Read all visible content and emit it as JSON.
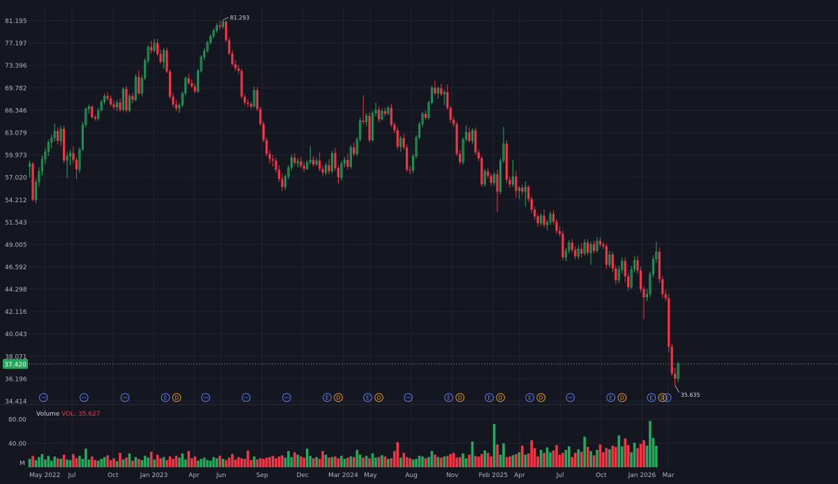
{
  "theme": {
    "background": "#141720",
    "grid": "#222632",
    "axis_text": "#b2b5be",
    "up": "#22ab5c",
    "down": "#f23645",
    "last_price_bg": "#22ab5c",
    "event_e": "#5b7cfa",
    "event_d": "#e89a12"
  },
  "price_axis": {
    "ticks": [
      "81.195",
      "77.197",
      "73.396",
      "69.782",
      "66.346",
      "63.079",
      "59.973",
      "57.020",
      "54.212",
      "51.543",
      "49.005",
      "46.592",
      "44.298",
      "42.116",
      "40.043",
      "38.071",
      "36.196",
      "34.414"
    ],
    "scale": "log"
  },
  "last_price": "37.420",
  "high_label": "81.293",
  "low_label": "35.635",
  "volume": {
    "title": "Volume",
    "vol_label": "VOL: 35.627",
    "ticks": [
      "80.00",
      "40.00"
    ],
    "unit": "M"
  },
  "x_axis": {
    "labels": [
      "May 2022",
      "Jul",
      "Oct",
      "Jan 2023",
      "Apr",
      "Jun",
      "Sep",
      "Dec",
      "Mar 2024",
      "May",
      "Aug",
      "Nov",
      "Feb 2025",
      "Apr",
      "Jul",
      "Oct",
      "Jan 2026",
      "Mar"
    ]
  },
  "events": [
    {
      "date": "2022-04-28",
      "types": [
        "dots"
      ]
    },
    {
      "date": "2022-07-28",
      "types": [
        "dots"
      ]
    },
    {
      "date": "2022-10-28",
      "types": [
        "dots"
      ]
    },
    {
      "date": "2023-01-27",
      "types": [
        "E",
        "D"
      ]
    },
    {
      "date": "2023-04-27",
      "types": [
        "dots"
      ]
    },
    {
      "date": "2023-07-27",
      "types": [
        "dots"
      ]
    },
    {
      "date": "2023-10-26",
      "types": [
        "dots"
      ]
    },
    {
      "date": "2024-01-25",
      "types": [
        "E",
        "D"
      ]
    },
    {
      "date": "2024-04-25",
      "types": [
        "E",
        "D"
      ]
    },
    {
      "date": "2024-07-25",
      "types": [
        "dots"
      ]
    },
    {
      "date": "2024-10-24",
      "types": [
        "E",
        "D"
      ]
    },
    {
      "date": "2025-01-23",
      "types": [
        "E",
        "D"
      ]
    },
    {
      "date": "2025-04-24",
      "types": [
        "E",
        "D"
      ]
    },
    {
      "date": "2025-07-24",
      "types": [
        "dots"
      ]
    },
    {
      "date": "2025-10-23",
      "types": [
        "E",
        "D"
      ]
    },
    {
      "date": "2026-01-22",
      "types": [
        "E",
        "D"
      ]
    },
    {
      "date": "2026-02-26",
      "types": [
        "E"
      ]
    }
  ],
  "chart_data": {
    "type": "candlestick",
    "interval": "weekly",
    "x_unit": "week start date",
    "x_start": "2022-03-28",
    "y_unit": "price",
    "volume_unit": "M",
    "ylim": [
      34.414,
      84
    ],
    "volume_lim": [
      0,
      100
    ],
    "ohlc": [
      [
        58.4,
        59.2,
        57.0,
        58.8
      ],
      [
        58.8,
        59.0,
        54.0,
        54.2
      ],
      [
        54.2,
        56.8,
        53.8,
        56.4
      ],
      [
        56.4,
        58.3,
        55.8,
        57.8
      ],
      [
        57.8,
        59.9,
        57.2,
        59.4
      ],
      [
        59.4,
        60.9,
        58.7,
        60.4
      ],
      [
        60.4,
        62.1,
        59.8,
        61.7
      ],
      [
        61.7,
        62.8,
        60.9,
        62.3
      ],
      [
        62.3,
        64.4,
        61.8,
        63.3
      ],
      [
        63.3,
        63.8,
        61.4,
        61.9
      ],
      [
        61.9,
        64.1,
        61.2,
        63.6
      ],
      [
        63.6,
        64.1,
        58.9,
        59.2
      ],
      [
        59.2,
        60.4,
        56.9,
        59.8
      ],
      [
        59.8,
        60.7,
        58.6,
        60.2
      ],
      [
        60.2,
        61.1,
        58.9,
        59.3
      ],
      [
        59.3,
        59.6,
        56.8,
        58.0
      ],
      [
        58.0,
        61.0,
        57.6,
        60.7
      ],
      [
        60.7,
        64.6,
        60.5,
        64.2
      ],
      [
        64.2,
        66.8,
        63.8,
        66.5
      ],
      [
        66.5,
        67.2,
        65.8,
        66.9
      ],
      [
        66.9,
        67.0,
        65.1,
        65.3
      ],
      [
        65.3,
        65.6,
        64.8,
        65.1
      ],
      [
        65.1,
        66.7,
        64.8,
        66.3
      ],
      [
        66.3,
        67.9,
        66.1,
        67.6
      ],
      [
        67.6,
        68.9,
        67.2,
        68.5
      ],
      [
        68.5,
        69.1,
        67.8,
        68.1
      ],
      [
        68.1,
        68.6,
        66.9,
        67.2
      ],
      [
        67.2,
        67.8,
        66.4,
        66.8
      ],
      [
        66.8,
        67.9,
        66.2,
        67.5
      ],
      [
        67.5,
        68.1,
        66.1,
        66.4
      ],
      [
        66.4,
        69.9,
        66.2,
        69.6
      ],
      [
        69.6,
        70.1,
        66.0,
        66.3
      ],
      [
        66.3,
        68.8,
        66.0,
        68.5
      ],
      [
        68.5,
        69.0,
        67.4,
        67.9
      ],
      [
        67.9,
        71.9,
        67.7,
        71.5
      ],
      [
        71.5,
        72.6,
        68.6,
        68.9
      ],
      [
        68.9,
        71.8,
        68.4,
        71.3
      ],
      [
        71.3,
        74.6,
        71.0,
        74.2
      ],
      [
        74.2,
        76.9,
        73.8,
        76.5
      ],
      [
        76.5,
        77.6,
        75.4,
        75.9
      ],
      [
        75.9,
        77.9,
        75.6,
        77.2
      ],
      [
        77.2,
        78.0,
        74.9,
        75.3
      ],
      [
        75.3,
        76.1,
        73.7,
        74.0
      ],
      [
        74.0,
        76.3,
        72.8,
        75.9
      ],
      [
        75.9,
        76.4,
        72.1,
        72.4
      ],
      [
        72.4,
        72.7,
        68.1,
        68.4
      ],
      [
        68.4,
        69.0,
        66.8,
        67.2
      ],
      [
        67.2,
        67.9,
        66.2,
        66.6
      ],
      [
        66.6,
        67.4,
        65.9,
        67.1
      ],
      [
        67.1,
        69.2,
        66.8,
        68.9
      ],
      [
        68.9,
        71.6,
        68.6,
        71.3
      ],
      [
        71.3,
        72.0,
        70.2,
        70.5
      ],
      [
        70.5,
        71.1,
        69.7,
        70.0
      ],
      [
        70.0,
        70.5,
        68.9,
        69.2
      ],
      [
        69.2,
        72.8,
        69.0,
        72.5
      ],
      [
        72.5,
        75.1,
        72.2,
        74.8
      ],
      [
        74.8,
        76.3,
        74.3,
        75.8
      ],
      [
        75.8,
        77.6,
        75.5,
        77.3
      ],
      [
        77.3,
        78.7,
        77.0,
        78.4
      ],
      [
        78.4,
        79.8,
        78.0,
        79.4
      ],
      [
        79.4,
        80.7,
        79.0,
        80.3
      ],
      [
        80.3,
        81.1,
        79.6,
        80.1
      ],
      [
        80.1,
        81.293,
        79.7,
        81.0
      ],
      [
        81.0,
        81.2,
        77.4,
        77.7
      ],
      [
        77.7,
        78.1,
        75.1,
        75.4
      ],
      [
        75.4,
        76.0,
        73.3,
        73.6
      ],
      [
        73.6,
        74.3,
        72.5,
        72.9
      ],
      [
        72.9,
        73.5,
        72.0,
        72.5
      ],
      [
        72.5,
        72.8,
        68.1,
        68.4
      ],
      [
        68.4,
        68.8,
        67.1,
        67.5
      ],
      [
        67.5,
        68.0,
        66.8,
        67.3
      ],
      [
        67.3,
        67.6,
        66.5,
        66.9
      ],
      [
        66.9,
        70.0,
        66.7,
        69.4
      ],
      [
        69.4,
        69.9,
        66.2,
        66.5
      ],
      [
        66.5,
        66.9,
        64.0,
        64.3
      ],
      [
        64.3,
        64.7,
        61.7,
        62.0
      ],
      [
        62.0,
        62.4,
        59.8,
        60.1
      ],
      [
        60.1,
        60.6,
        58.8,
        59.4
      ],
      [
        59.4,
        60.0,
        58.4,
        59.2
      ],
      [
        59.2,
        59.6,
        57.6,
        58.0
      ],
      [
        58.0,
        58.6,
        56.4,
        56.8
      ],
      [
        56.8,
        57.5,
        55.3,
        55.8
      ],
      [
        55.8,
        57.4,
        55.4,
        57.1
      ],
      [
        57.1,
        58.6,
        56.8,
        58.3
      ],
      [
        58.3,
        60.0,
        57.9,
        59.6
      ],
      [
        59.6,
        60.2,
        58.6,
        58.9
      ],
      [
        58.9,
        59.5,
        58.3,
        59.1
      ],
      [
        59.1,
        59.7,
        58.2,
        58.5
      ],
      [
        58.5,
        59.0,
        57.7,
        58.1
      ],
      [
        58.1,
        59.3,
        57.9,
        59.0
      ],
      [
        59.0,
        61.2,
        58.7,
        59.3
      ],
      [
        59.3,
        59.8,
        58.4,
        58.7
      ],
      [
        58.7,
        59.6,
        58.5,
        59.2
      ],
      [
        59.2,
        60.3,
        57.8,
        58.1
      ],
      [
        58.1,
        58.5,
        57.2,
        57.6
      ],
      [
        57.6,
        58.9,
        57.3,
        58.6
      ],
      [
        58.6,
        59.4,
        57.4,
        57.8
      ],
      [
        57.8,
        60.5,
        57.5,
        60.2
      ],
      [
        60.2,
        60.9,
        57.9,
        58.2
      ],
      [
        58.2,
        58.6,
        56.2,
        57.0
      ],
      [
        57.0,
        59.2,
        56.6,
        58.8
      ],
      [
        58.8,
        59.7,
        58.3,
        59.3
      ],
      [
        59.3,
        60.2,
        58.0,
        58.4
      ],
      [
        58.4,
        61.3,
        58.1,
        61.0
      ],
      [
        61.0,
        61.7,
        59.8,
        60.1
      ],
      [
        60.1,
        62.4,
        59.8,
        62.1
      ],
      [
        62.1,
        65.3,
        61.8,
        64.8
      ],
      [
        64.8,
        68.6,
        64.3,
        64.6
      ],
      [
        64.6,
        65.9,
        64.0,
        65.5
      ],
      [
        65.5,
        66.0,
        61.7,
        62.0
      ],
      [
        62.0,
        66.2,
        61.8,
        65.9
      ],
      [
        65.9,
        67.5,
        65.4,
        66.4
      ],
      [
        66.4,
        66.9,
        64.6,
        65.0
      ],
      [
        65.0,
        66.6,
        64.8,
        66.2
      ],
      [
        66.2,
        66.7,
        65.4,
        65.8
      ],
      [
        65.8,
        67.0,
        65.6,
        66.7
      ],
      [
        66.7,
        67.3,
        63.9,
        64.2
      ],
      [
        64.2,
        64.6,
        63.0,
        63.4
      ],
      [
        63.4,
        63.8,
        60.8,
        61.1
      ],
      [
        61.1,
        62.6,
        60.4,
        62.3
      ],
      [
        62.3,
        62.9,
        60.7,
        61.0
      ],
      [
        61.0,
        61.4,
        57.7,
        58.0
      ],
      [
        58.0,
        58.5,
        57.4,
        57.9
      ],
      [
        57.9,
        60.1,
        57.6,
        59.8
      ],
      [
        59.8,
        62.7,
        59.5,
        62.4
      ],
      [
        62.4,
        64.6,
        62.1,
        64.3
      ],
      [
        64.3,
        66.1,
        63.8,
        65.8
      ],
      [
        65.8,
        66.3,
        64.9,
        65.2
      ],
      [
        65.2,
        67.8,
        64.9,
        67.5
      ],
      [
        67.5,
        70.1,
        67.2,
        69.8
      ],
      [
        69.8,
        70.9,
        68.6,
        68.9
      ],
      [
        68.9,
        70.0,
        68.1,
        69.7
      ],
      [
        69.7,
        70.4,
        68.5,
        68.8
      ],
      [
        68.8,
        69.5,
        67.1,
        69.1
      ],
      [
        69.1,
        70.3,
        66.4,
        66.7
      ],
      [
        66.7,
        67.0,
        64.5,
        64.9
      ],
      [
        64.9,
        65.3,
        63.9,
        64.3
      ],
      [
        64.3,
        64.7,
        59.8,
        60.1
      ],
      [
        60.1,
        60.6,
        58.7,
        59.0
      ],
      [
        59.0,
        62.4,
        58.7,
        62.1
      ],
      [
        62.1,
        64.1,
        61.8,
        63.1
      ],
      [
        63.1,
        63.8,
        61.6,
        61.9
      ],
      [
        61.9,
        63.7,
        61.5,
        63.4
      ],
      [
        63.4,
        63.8,
        60.0,
        60.3
      ],
      [
        60.3,
        60.7,
        59.1,
        59.5
      ],
      [
        59.5,
        59.8,
        55.8,
        56.1
      ],
      [
        56.1,
        58.1,
        55.8,
        57.8
      ],
      [
        57.8,
        58.2,
        56.9,
        57.2
      ],
      [
        57.2,
        57.5,
        55.9,
        56.3
      ],
      [
        56.3,
        57.7,
        56.0,
        57.4
      ],
      [
        57.4,
        58.0,
        52.7,
        55.2
      ],
      [
        55.2,
        59.5,
        54.9,
        59.2
      ],
      [
        59.2,
        63.9,
        58.9,
        61.5
      ],
      [
        61.5,
        62.0,
        56.3,
        56.7
      ],
      [
        56.7,
        57.1,
        55.7,
        56.1
      ],
      [
        56.1,
        59.3,
        55.8,
        57.1
      ],
      [
        57.1,
        57.9,
        54.5,
        55.3
      ],
      [
        55.3,
        55.9,
        54.3,
        55.7
      ],
      [
        55.7,
        56.1,
        54.8,
        55.2
      ],
      [
        55.2,
        56.5,
        53.4,
        55.8
      ],
      [
        55.8,
        56.0,
        53.9,
        54.3
      ],
      [
        54.3,
        54.6,
        52.6,
        53.0
      ],
      [
        53.0,
        53.4,
        51.8,
        52.2
      ],
      [
        52.2,
        52.5,
        51.0,
        51.4
      ],
      [
        51.4,
        52.6,
        51.1,
        52.3
      ],
      [
        52.3,
        53.0,
        50.9,
        51.2
      ],
      [
        51.2,
        51.8,
        50.6,
        51.5
      ],
      [
        51.5,
        52.8,
        51.2,
        52.5
      ],
      [
        52.5,
        52.9,
        51.3,
        51.6
      ],
      [
        51.6,
        51.9,
        50.2,
        50.5
      ],
      [
        50.5,
        51.0,
        49.9,
        50.2
      ],
      [
        50.2,
        50.6,
        47.3,
        47.6
      ],
      [
        47.6,
        48.6,
        47.2,
        48.3
      ],
      [
        48.3,
        49.5,
        48.0,
        49.2
      ],
      [
        49.2,
        49.6,
        48.1,
        48.4
      ],
      [
        48.4,
        48.8,
        47.4,
        47.7
      ],
      [
        47.7,
        48.9,
        47.4,
        48.5
      ],
      [
        48.5,
        49.1,
        47.6,
        48.0
      ],
      [
        48.0,
        49.6,
        47.8,
        49.2
      ],
      [
        49.2,
        49.6,
        47.8,
        48.1
      ],
      [
        48.1,
        49.3,
        46.8,
        49.0
      ],
      [
        49.0,
        49.4,
        48.0,
        48.3
      ],
      [
        48.3,
        49.8,
        48.1,
        49.4
      ],
      [
        49.4,
        49.8,
        48.7,
        49.0
      ],
      [
        49.0,
        49.3,
        48.5,
        48.8
      ],
      [
        48.8,
        49.1,
        46.4,
        46.8
      ],
      [
        46.8,
        48.3,
        46.5,
        47.9
      ],
      [
        47.9,
        48.2,
        46.0,
        46.4
      ],
      [
        46.4,
        46.7,
        44.8,
        45.2
      ],
      [
        45.2,
        46.7,
        44.9,
        46.3
      ],
      [
        46.3,
        47.6,
        45.9,
        47.2
      ],
      [
        47.2,
        47.6,
        45.0,
        45.6
      ],
      [
        45.6,
        45.9,
        44.1,
        44.5
      ],
      [
        44.5,
        46.7,
        44.3,
        46.3
      ],
      [
        46.3,
        47.7,
        46.0,
        47.3
      ],
      [
        47.3,
        47.8,
        45.9,
        46.2
      ],
      [
        46.2,
        46.6,
        44.0,
        44.3
      ],
      [
        44.3,
        44.6,
        41.4,
        43.5
      ],
      [
        43.5,
        44.3,
        43.1,
        43.8
      ],
      [
        43.8,
        46.1,
        43.5,
        45.8
      ],
      [
        45.8,
        47.8,
        45.5,
        47.4
      ],
      [
        47.4,
        49.3,
        47.0,
        48.2
      ],
      [
        48.2,
        48.6,
        44.9,
        45.3
      ],
      [
        45.3,
        45.6,
        43.4,
        43.8
      ],
      [
        43.8,
        44.2,
        43.1,
        43.4
      ],
      [
        43.4,
        43.8,
        38.4,
        38.9
      ],
      [
        38.9,
        39.2,
        36.4,
        36.6
      ],
      [
        36.6,
        37.1,
        35.635,
        36.2
      ],
      [
        36.2,
        37.6,
        35.9,
        37.42
      ]
    ],
    "volume": [
      14,
      19,
      12,
      17,
      22,
      13,
      19,
      11,
      18,
      15,
      14,
      21,
      13,
      12,
      22,
      15,
      19,
      14,
      31,
      13,
      18,
      12,
      11,
      14,
      17,
      20,
      12,
      15,
      10,
      24,
      13,
      16,
      23,
      11,
      17,
      14,
      12,
      19,
      16,
      26,
      13,
      21,
      15,
      17,
      12,
      18,
      14,
      19,
      16,
      23,
      13,
      27,
      15,
      18,
      11,
      14,
      16,
      12,
      11,
      17,
      15,
      19,
      14,
      12,
      16,
      22,
      13,
      17,
      15,
      14,
      28,
      12,
      18,
      13,
      15,
      14,
      16,
      17,
      19,
      15,
      18,
      20,
      16,
      27,
      17,
      25,
      21,
      18,
      16,
      31,
      19,
      15,
      17,
      14,
      27,
      21,
      16,
      17,
      18,
      15,
      19,
      14,
      16,
      18,
      17,
      29,
      21,
      16,
      19,
      15,
      23,
      16,
      17,
      20,
      18,
      14,
      15,
      27,
      42,
      16,
      24,
      17,
      15,
      13,
      14,
      19,
      18,
      15,
      17,
      27,
      21,
      17,
      16,
      18,
      19,
      22,
      24,
      16,
      17,
      23,
      15,
      21,
      43,
      19,
      18,
      22,
      28,
      24,
      18,
      72,
      38,
      21,
      40,
      17,
      18,
      20,
      22,
      25,
      36,
      21,
      23,
      45,
      32,
      18,
      29,
      24,
      33,
      25,
      28,
      37,
      21,
      24,
      29,
      35,
      17,
      24,
      30,
      26,
      51,
      34,
      27,
      20,
      29,
      38,
      25,
      32,
      30,
      36,
      34,
      53,
      35,
      48,
      37,
      25,
      41,
      32,
      39,
      45,
      36,
      77,
      49,
      36
    ]
  }
}
